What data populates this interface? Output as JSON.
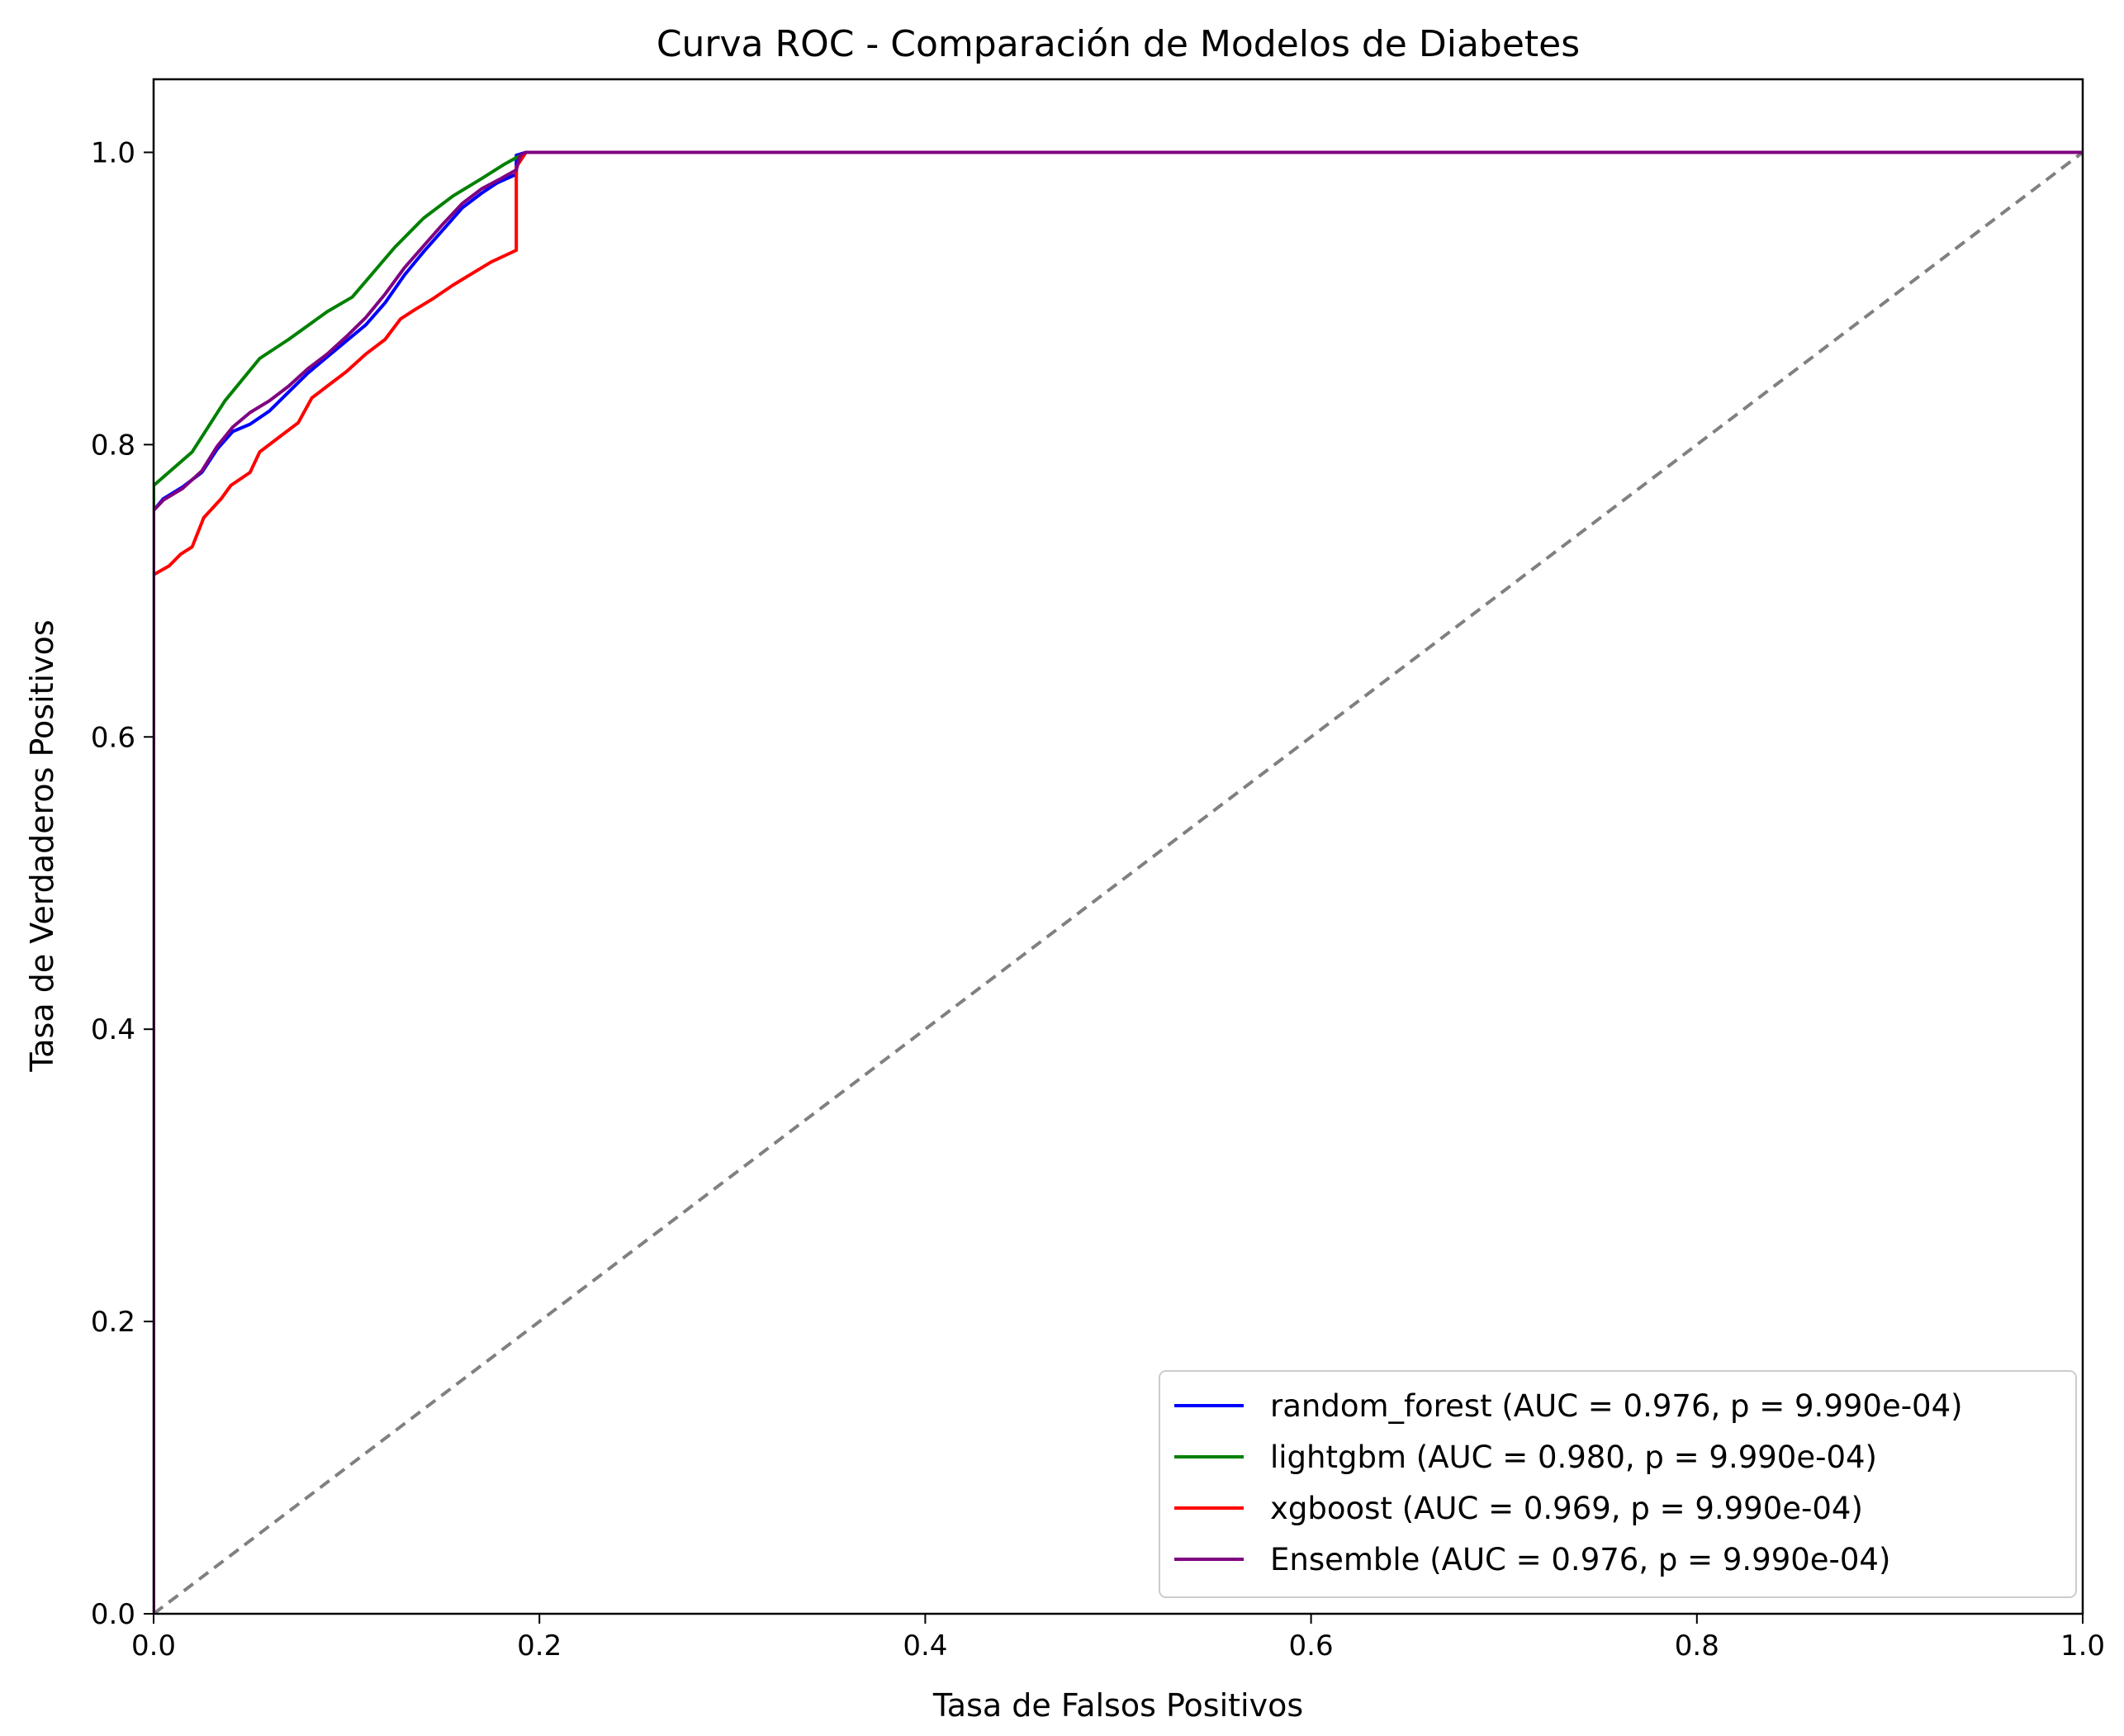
{
  "chart_data": {
    "type": "line",
    "title": "Curva ROC - Comparación de Modelos de Diabetes",
    "xlabel": "Tasa de Falsos Positivos",
    "ylabel": "Tasa de Verdaderos Positivos",
    "xlim": [
      0.0,
      1.0
    ],
    "ylim": [
      0.0,
      1.05
    ],
    "xticks": [
      0.0,
      0.2,
      0.4,
      0.6,
      0.8,
      1.0
    ],
    "yticks": [
      0.0,
      0.2,
      0.4,
      0.6,
      0.8,
      1.0
    ],
    "xtick_labels": [
      "0.0",
      "0.2",
      "0.4",
      "0.6",
      "0.8",
      "1.0"
    ],
    "ytick_labels": [
      "0.0",
      "0.2",
      "0.4",
      "0.6",
      "0.8",
      "1.0"
    ],
    "grid": false,
    "legend_position": "lower-right",
    "series": [
      {
        "name": "random_forest (AUC = 0.976, p = 9.990e-04)",
        "color": "#0000ff",
        "points": [
          [
            0,
            0
          ],
          [
            0,
            0.755
          ],
          [
            0.005,
            0.763
          ],
          [
            0.015,
            0.771
          ],
          [
            0.025,
            0.781
          ],
          [
            0.033,
            0.797
          ],
          [
            0.041,
            0.809
          ],
          [
            0.05,
            0.814
          ],
          [
            0.06,
            0.823
          ],
          [
            0.07,
            0.836
          ],
          [
            0.08,
            0.849
          ],
          [
            0.09,
            0.86
          ],
          [
            0.1,
            0.871
          ],
          [
            0.11,
            0.882
          ],
          [
            0.12,
            0.897
          ],
          [
            0.13,
            0.916
          ],
          [
            0.14,
            0.932
          ],
          [
            0.15,
            0.947
          ],
          [
            0.16,
            0.962
          ],
          [
            0.17,
            0.972
          ],
          [
            0.178,
            0.979
          ],
          [
            0.188,
            0.985
          ],
          [
            0.188,
            0.998
          ],
          [
            0.193,
            1.0
          ],
          [
            1.0,
            1.0
          ]
        ]
      },
      {
        "name": "lightgbm (AUC = 0.980, p = 9.990e-04)",
        "color": "#008000",
        "points": [
          [
            0,
            0
          ],
          [
            0,
            0.772
          ],
          [
            0.02,
            0.795
          ],
          [
            0.037,
            0.83
          ],
          [
            0.055,
            0.859
          ],
          [
            0.07,
            0.872
          ],
          [
            0.09,
            0.891
          ],
          [
            0.103,
            0.901
          ],
          [
            0.125,
            0.935
          ],
          [
            0.14,
            0.955
          ],
          [
            0.155,
            0.97
          ],
          [
            0.17,
            0.982
          ],
          [
            0.182,
            0.992
          ],
          [
            0.193,
            1.0
          ],
          [
            1.0,
            1.0
          ]
        ]
      },
      {
        "name": "xgboost (AUC = 0.969, p = 9.990e-04)",
        "color": "#ff0000",
        "points": [
          [
            0,
            0
          ],
          [
            0,
            0.711
          ],
          [
            0.008,
            0.717
          ],
          [
            0.014,
            0.725
          ],
          [
            0.02,
            0.73
          ],
          [
            0.026,
            0.75
          ],
          [
            0.035,
            0.763
          ],
          [
            0.04,
            0.772
          ],
          [
            0.05,
            0.781
          ],
          [
            0.055,
            0.795
          ],
          [
            0.065,
            0.805
          ],
          [
            0.075,
            0.815
          ],
          [
            0.082,
            0.832
          ],
          [
            0.09,
            0.84
          ],
          [
            0.1,
            0.85
          ],
          [
            0.11,
            0.862
          ],
          [
            0.12,
            0.872
          ],
          [
            0.128,
            0.886
          ],
          [
            0.135,
            0.892
          ],
          [
            0.145,
            0.9
          ],
          [
            0.155,
            0.909
          ],
          [
            0.165,
            0.917
          ],
          [
            0.175,
            0.925
          ],
          [
            0.188,
            0.933
          ],
          [
            0.188,
            0.99
          ],
          [
            0.193,
            1.0
          ],
          [
            1.0,
            1.0
          ]
        ]
      },
      {
        "name": "Ensemble (AUC = 0.976, p = 9.990e-04)",
        "color": "#800080",
        "points": [
          [
            0,
            0
          ],
          [
            0,
            0.755
          ],
          [
            0.005,
            0.762
          ],
          [
            0.015,
            0.77
          ],
          [
            0.025,
            0.782
          ],
          [
            0.033,
            0.799
          ],
          [
            0.041,
            0.812
          ],
          [
            0.05,
            0.822
          ],
          [
            0.06,
            0.83
          ],
          [
            0.07,
            0.84
          ],
          [
            0.08,
            0.852
          ],
          [
            0.09,
            0.862
          ],
          [
            0.1,
            0.874
          ],
          [
            0.11,
            0.887
          ],
          [
            0.12,
            0.903
          ],
          [
            0.13,
            0.921
          ],
          [
            0.14,
            0.936
          ],
          [
            0.15,
            0.951
          ],
          [
            0.16,
            0.965
          ],
          [
            0.17,
            0.975
          ],
          [
            0.18,
            0.982
          ],
          [
            0.188,
            0.988
          ],
          [
            0.19,
            0.998
          ],
          [
            0.193,
            1.0
          ],
          [
            1.0,
            1.0
          ]
        ]
      },
      {
        "name": "",
        "color": "#808080",
        "dashed": true,
        "points": [
          [
            0,
            0
          ],
          [
            1,
            1
          ]
        ]
      }
    ]
  }
}
